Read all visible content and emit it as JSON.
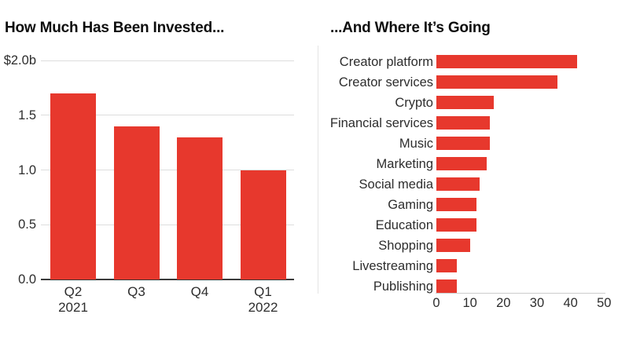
{
  "colors": {
    "bar_red": "#e7382d",
    "gridline": "#dddddd",
    "baseline_dark": "#3a3a3a",
    "axis_light": "#cccccc",
    "divider": "#e4e4e4",
    "title_text": "#0d0d0d",
    "label_text": "#2d2d2d"
  },
  "chart_data": [
    {
      "type": "bar",
      "title": "How Much Has Been Invested...",
      "categories": [
        "Q2 2021",
        "Q3",
        "Q4",
        "Q1 2022"
      ],
      "category_lines": [
        [
          "Q2",
          "2021"
        ],
        [
          "Q3"
        ],
        [
          "Q4"
        ],
        [
          "Q1",
          "2022"
        ]
      ],
      "values": [
        1.7,
        1.4,
        1.3,
        1.0
      ],
      "unit": "$ billions",
      "ylim": [
        0,
        2.0
      ],
      "yticks": [
        {
          "label": "$2.0b",
          "value": 2.0
        },
        {
          "label": "1.5",
          "value": 1.5
        },
        {
          "label": "1.0",
          "value": 1.0
        },
        {
          "label": "0.5",
          "value": 0.5
        },
        {
          "label": "0.0",
          "value": 0.0
        }
      ],
      "grid": "horizontal gridlines, dark zero baseline"
    },
    {
      "type": "bar-horizontal",
      "title": "...And Where It’s Going",
      "categories": [
        "Creator platform",
        "Creator services",
        "Crypto",
        "Financial services",
        "Music",
        "Marketing",
        "Social media",
        "Gaming",
        "Education",
        "Shopping",
        "Livestreaming",
        "Publishing"
      ],
      "values": [
        42,
        36,
        17,
        16,
        16,
        15,
        13,
        12,
        12,
        10,
        6,
        6
      ],
      "xlim": [
        0,
        50
      ],
      "xticks": [
        0,
        10,
        20,
        30,
        40,
        50
      ],
      "grid": "none, light bottom axis line"
    }
  ]
}
